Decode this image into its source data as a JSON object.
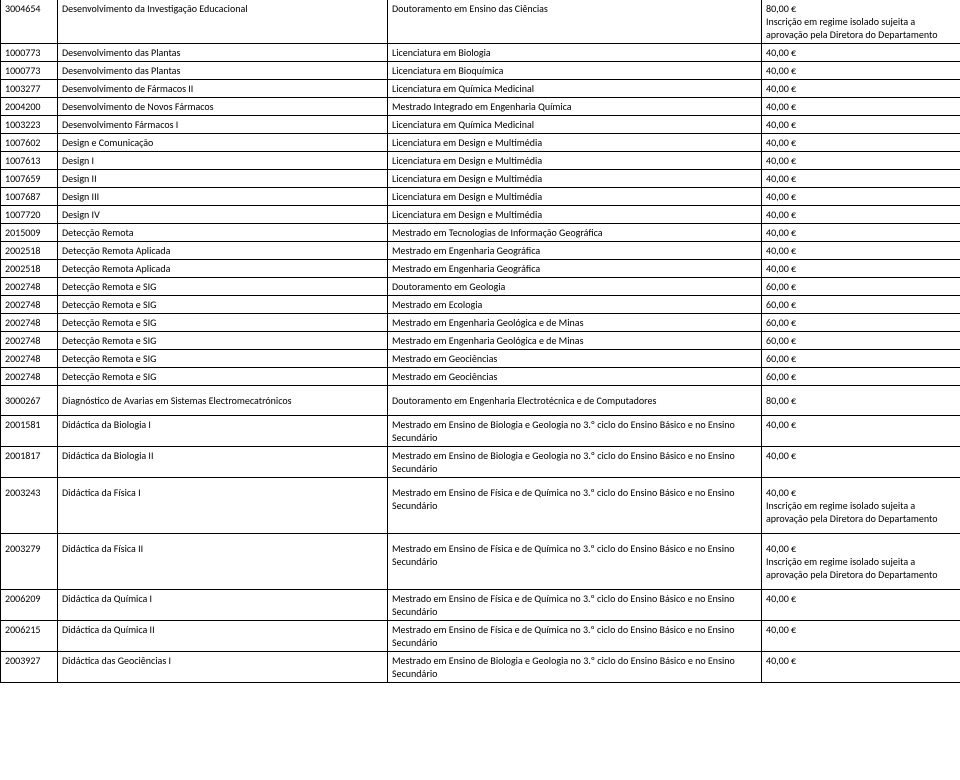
{
  "rows": [
    {
      "c1": "3004654",
      "c2": "Desenvolvimento da Investigação Educacional",
      "c3": "Doutoramento em Ensino das Ciências",
      "c4": "80,00 €\nInscrição em regime isolado sujeita a aprovação pela Diretora do Departamento",
      "top": true
    },
    {
      "c1": "1000773",
      "c2": "Desenvolvimento das Plantas",
      "c3": "Licenciatura em Biologia",
      "c4": "40,00 €"
    },
    {
      "c1": "1000773",
      "c2": "Desenvolvimento das Plantas",
      "c3": "Licenciatura em Bioquímica",
      "c4": "40,00 €"
    },
    {
      "c1": "1003277",
      "c2": "Desenvolvimento de Fármacos II",
      "c3": "Licenciatura em Química Medicinal",
      "c4": "40,00 €"
    },
    {
      "c1": "2004200",
      "c2": "Desenvolvimento de Novos Fármacos",
      "c3": "Mestrado Integrado em Engenharia Química",
      "c4": "40,00 €"
    },
    {
      "c1": "1003223",
      "c2": "Desenvolvimento Fármacos I",
      "c3": "Licenciatura em Química Medicinal",
      "c4": "40,00 €"
    },
    {
      "c1": "1007602",
      "c2": "Design e Comunicação",
      "c3": "Licenciatura em Design e Multimédia",
      "c4": "40,00 €"
    },
    {
      "c1": "1007613",
      "c2": "Design I",
      "c3": "Licenciatura em Design e Multimédia",
      "c4": "40,00 €"
    },
    {
      "c1": "1007659",
      "c2": "Design II",
      "c3": "Licenciatura em Design e Multimédia",
      "c4": "40,00 €"
    },
    {
      "c1": "1007687",
      "c2": "Design III",
      "c3": "Licenciatura em Design e Multimédia",
      "c4": "40,00 €"
    },
    {
      "c1": "1007720",
      "c2": "Design IV",
      "c3": "Licenciatura em Design e Multimédia",
      "c4": "40,00 €"
    },
    {
      "c1": "2015009",
      "c2": "Detecção Remota",
      "c3": "Mestrado em Tecnologias de Informação Geográfica",
      "c4": "40,00 €"
    },
    {
      "c1": "2002518",
      "c2": "Detecção Remota Aplicada",
      "c3": "Mestrado em Engenharia Geográfica",
      "c4": "40,00 €"
    },
    {
      "c1": "2002518",
      "c2": "Detecção Remota Aplicada",
      "c3": "Mestrado em Engenharia Geográfica",
      "c4": "40,00 €"
    },
    {
      "c1": "2002748",
      "c2": "Detecção Remota e SIG",
      "c3": "Doutoramento em Geologia",
      "c4": "60,00 €"
    },
    {
      "c1": "2002748",
      "c2": "Detecção Remota e SIG",
      "c3": "Mestrado em Ecologia",
      "c4": "60,00 €"
    },
    {
      "c1": "2002748",
      "c2": "Detecção Remota e SIG",
      "c3": "Mestrado em Engenharia Geológica e de Minas",
      "c4": "60,00 €"
    },
    {
      "c1": "2002748",
      "c2": "Detecção Remota e SIG",
      "c3": "Mestrado em Engenharia Geológica e de Minas",
      "c4": "60,00 €"
    },
    {
      "c1": "2002748",
      "c2": "Detecção Remota e SIG",
      "c3": "Mestrado em Geociências",
      "c4": "60,00 €"
    },
    {
      "c1": "2002748",
      "c2": "Detecção Remota e SIG",
      "c3": "Mestrado em Geociências",
      "c4": "60,00 €"
    },
    {
      "c1": "3000267",
      "c2": "Diagnóstico de Avarias em Sistemas Electromecatrónicos",
      "c3": "Doutoramento em Engenharia Electrotécnica e de Computadores",
      "c4": "80,00 €",
      "tall": true
    },
    {
      "c1": "2001581",
      "c2": "Didáctica da Biologia I",
      "c3": "Mestrado em Ensino de Biologia e Geologia no 3.º ciclo do Ensino Básico e no Ensino Secundário",
      "c4": "40,00 €"
    },
    {
      "c1": "2001817",
      "c2": "Didáctica da Biologia II",
      "c3": "Mestrado em Ensino de Biologia e Geologia no 3.º ciclo do Ensino Básico e no Ensino Secundário",
      "c4": "40,00 €"
    },
    {
      "c1": "2003243",
      "c2": "Didáctica da Física I",
      "c3": "Mestrado em Ensino de Física e de Química no 3.º ciclo do Ensino Básico e no Ensino Secundário",
      "c4": "40,00 €\nInscrição em regime isolado sujeita a aprovação pela Diretora do Departamento",
      "tall": true
    },
    {
      "c1": "2003279",
      "c2": "Didáctica da Física II",
      "c3": "Mestrado em Ensino de Física e de Química no 3.º ciclo do Ensino Básico e no Ensino Secundário",
      "c4": "40,00 €\nInscrição em regime isolado sujeita a aprovação pela Diretora do Departamento",
      "tall": true
    },
    {
      "c1": "2006209",
      "c2": "Didáctica da Química I",
      "c3": "Mestrado em Ensino de Física e de Química no 3.º ciclo do Ensino Básico e no Ensino Secundário",
      "c4": "40,00 €"
    },
    {
      "c1": "2006215",
      "c2": "Didáctica da Química II",
      "c3": "Mestrado em Ensino de Física e de Química no 3.º ciclo do Ensino Básico e no Ensino Secundário",
      "c4": "40,00 €"
    },
    {
      "c1": "2003927",
      "c2": "Didáctica das Geociências I",
      "c3": "Mestrado em Ensino de Biologia e Geologia no 3.º ciclo do Ensino Básico e no Ensino Secundário",
      "c4": "40,00 €"
    }
  ]
}
